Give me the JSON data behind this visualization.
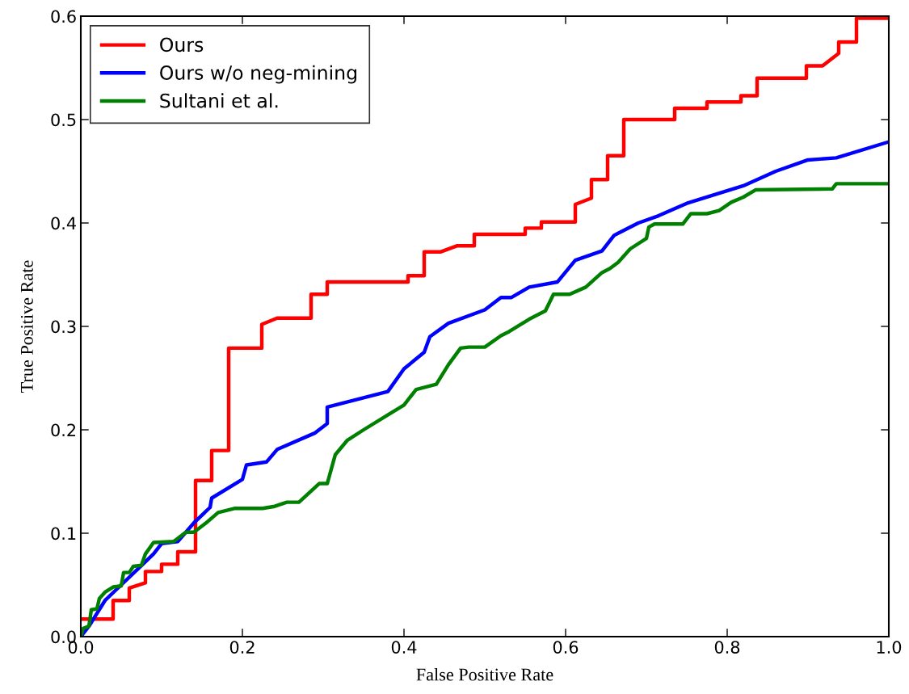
{
  "chart_data": {
    "type": "line",
    "xlabel": "False Positive Rate",
    "ylabel": "True Positive Rate",
    "xlim": [
      0,
      1
    ],
    "ylim": [
      0,
      0.6
    ],
    "xticks": [
      {
        "value": 0,
        "label": "0.0"
      },
      0.2,
      0.4,
      0.6,
      0.8,
      {
        "value": 1,
        "label": "1.0"
      }
    ],
    "yticks": [
      {
        "value": 0,
        "label": "0.0"
      },
      0.1,
      0.2,
      0.3,
      0.4,
      0.5,
      0.6
    ],
    "grid": false,
    "legend": "top left",
    "marker": "none",
    "line_style": "solid",
    "series": [
      {
        "name": "Ours",
        "color": "#ff0000",
        "x": [
          0,
          0.04,
          0.04,
          0.06,
          0.06,
          0.08,
          0.08,
          0.1,
          0.1,
          0.12,
          0.12,
          0.142,
          0.142,
          0.162,
          0.162,
          0.183,
          0.183,
          0.224,
          0.224,
          0.243,
          0.285,
          0.285,
          0.305,
          0.305,
          0.405,
          0.405,
          0.425,
          0.425,
          0.445,
          0.466,
          0.487,
          0.487,
          0.55,
          0.55,
          0.57,
          0.57,
          0.612,
          0.612,
          0.632,
          0.632,
          0.652,
          0.652,
          0.672,
          0.672,
          0.735,
          0.735,
          0.775,
          0.775,
          0.817,
          0.817,
          0.837,
          0.837,
          0.898,
          0.898,
          0.918,
          0.938,
          0.938,
          0.96,
          0.96,
          1.0
        ],
        "values": [
          0.017,
          0.017,
          0.035,
          0.035,
          0.047,
          0.052,
          0.063,
          0.063,
          0.07,
          0.07,
          0.082,
          0.082,
          0.151,
          0.151,
          0.18,
          0.18,
          0.279,
          0.279,
          0.302,
          0.308,
          0.308,
          0.331,
          0.331,
          0.343,
          0.343,
          0.349,
          0.349,
          0.372,
          0.372,
          0.378,
          0.378,
          0.389,
          0.389,
          0.395,
          0.395,
          0.401,
          0.401,
          0.418,
          0.424,
          0.442,
          0.442,
          0.465,
          0.465,
          0.5,
          0.5,
          0.511,
          0.511,
          0.517,
          0.517,
          0.523,
          0.523,
          0.54,
          0.54,
          0.552,
          0.552,
          0.564,
          0.575,
          0.575,
          0.598,
          0.598
        ]
      },
      {
        "name": "Ours w/o neg-mining",
        "color": "#0000ff",
        "x": [
          0,
          0.01,
          0.03,
          0.05,
          0.07,
          0.09,
          0.1,
          0.12,
          0.14,
          0.16,
          0.162,
          0.2,
          0.205,
          0.23,
          0.243,
          0.29,
          0.305,
          0.305,
          0.38,
          0.4,
          0.425,
          0.432,
          0.455,
          0.5,
          0.52,
          0.533,
          0.555,
          0.59,
          0.612,
          0.645,
          0.66,
          0.69,
          0.715,
          0.75,
          0.82,
          0.86,
          0.9,
          0.935,
          0.998
        ],
        "values": [
          0,
          0.01,
          0.035,
          0.05,
          0.065,
          0.08,
          0.09,
          0.092,
          0.11,
          0.125,
          0.134,
          0.152,
          0.166,
          0.169,
          0.181,
          0.197,
          0.206,
          0.222,
          0.237,
          0.259,
          0.275,
          0.29,
          0.303,
          0.316,
          0.328,
          0.328,
          0.338,
          0.343,
          0.364,
          0.373,
          0.388,
          0.4,
          0.407,
          0.419,
          0.436,
          0.45,
          0.461,
          0.463,
          0.478
        ]
      },
      {
        "name": "Sultani et al.",
        "color": "#008000",
        "x": [
          0,
          0.003,
          0.01,
          0.013,
          0.02,
          0.023,
          0.03,
          0.04,
          0.05,
          0.053,
          0.06,
          0.065,
          0.075,
          0.08,
          0.09,
          0.115,
          0.13,
          0.14,
          0.155,
          0.17,
          0.19,
          0.225,
          0.24,
          0.255,
          0.27,
          0.295,
          0.305,
          0.315,
          0.33,
          0.35,
          0.4,
          0.415,
          0.44,
          0.455,
          0.47,
          0.48,
          0.5,
          0.52,
          0.53,
          0.555,
          0.575,
          0.585,
          0.605,
          0.625,
          0.645,
          0.655,
          0.665,
          0.68,
          0.7,
          0.703,
          0.71,
          0.745,
          0.755,
          0.775,
          0.79,
          0.805,
          0.82,
          0.835,
          0.93,
          0.935,
          1.0
        ],
        "values": [
          0,
          0.008,
          0.01,
          0.026,
          0.027,
          0.037,
          0.043,
          0.048,
          0.049,
          0.062,
          0.062,
          0.068,
          0.069,
          0.08,
          0.091,
          0.092,
          0.101,
          0.101,
          0.11,
          0.12,
          0.124,
          0.124,
          0.126,
          0.13,
          0.13,
          0.148,
          0.148,
          0.176,
          0.19,
          0.2,
          0.224,
          0.239,
          0.244,
          0.263,
          0.279,
          0.28,
          0.28,
          0.291,
          0.295,
          0.307,
          0.315,
          0.331,
          0.331,
          0.338,
          0.352,
          0.356,
          0.362,
          0.375,
          0.385,
          0.396,
          0.399,
          0.399,
          0.409,
          0.409,
          0.412,
          0.42,
          0.425,
          0.432,
          0.433,
          0.438,
          0.438
        ]
      }
    ]
  }
}
